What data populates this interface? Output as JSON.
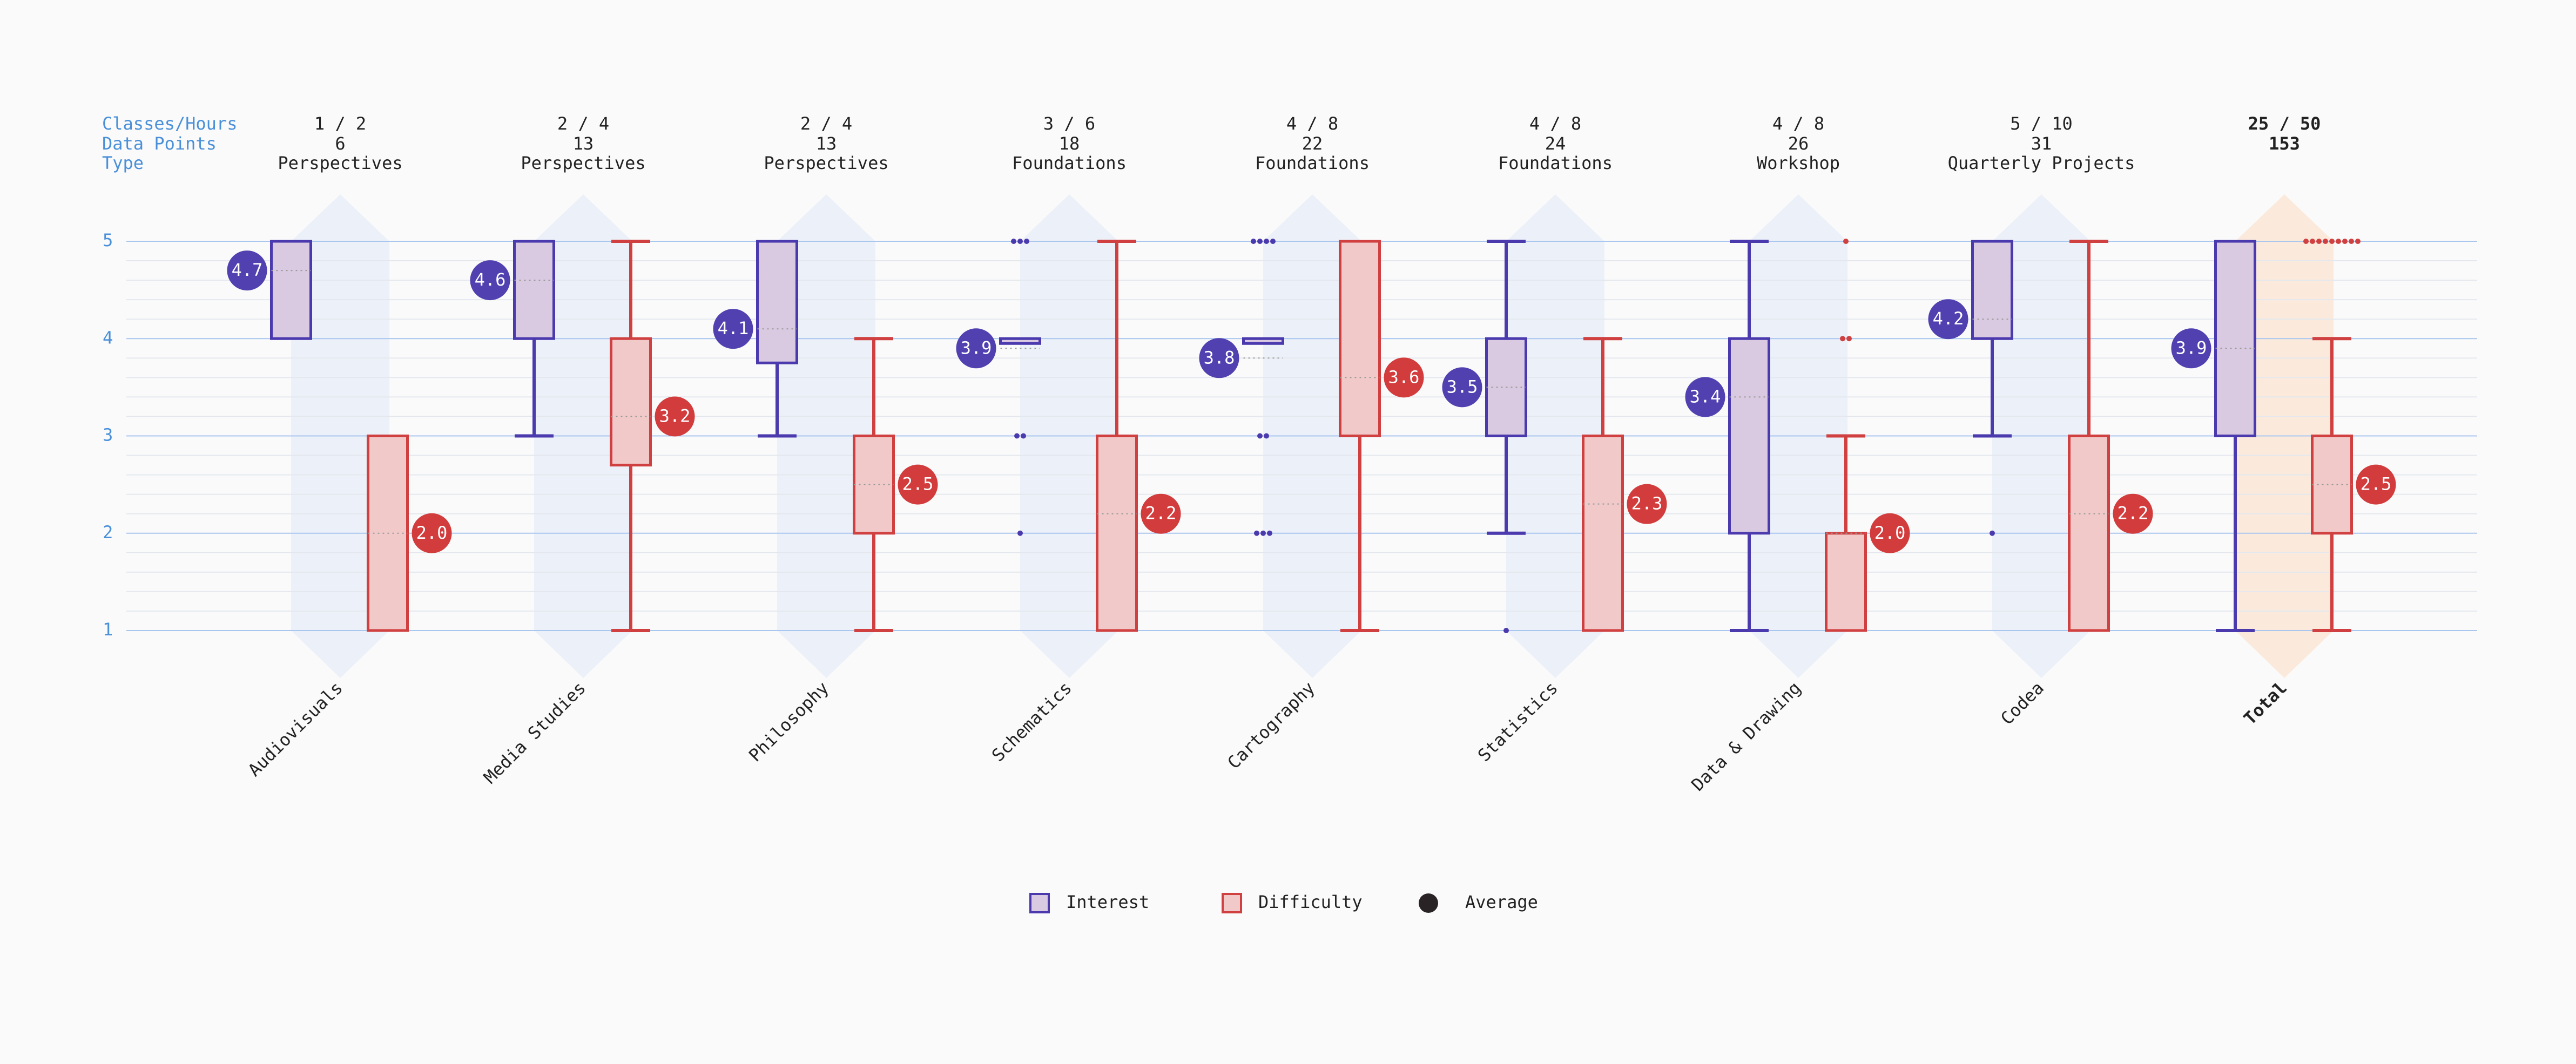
{
  "header": {
    "labels": [
      "Classes/Hours",
      "Data Points",
      "Type"
    ]
  },
  "chart_data": {
    "type": "box",
    "ylim": [
      1,
      5
    ],
    "yticks": [
      1,
      2,
      3,
      4,
      5
    ],
    "grid": true,
    "categories": [
      "Audiovisuals",
      "Media Studies",
      "Philosophy",
      "Schematics",
      "Cartography",
      "Statistics",
      "Data & Drawing",
      "Codea",
      "Total"
    ],
    "info": [
      {
        "classes_hours": "1 / 2",
        "data_points": 6,
        "kind": "Perspectives"
      },
      {
        "classes_hours": "2 / 4",
        "data_points": 13,
        "kind": "Perspectives"
      },
      {
        "classes_hours": "2 / 4",
        "data_points": 13,
        "kind": "Perspectives"
      },
      {
        "classes_hours": "3 / 6",
        "data_points": 18,
        "kind": "Foundations"
      },
      {
        "classes_hours": "4 / 8",
        "data_points": 22,
        "kind": "Foundations"
      },
      {
        "classes_hours": "4 / 8",
        "data_points": 24,
        "kind": "Foundations"
      },
      {
        "classes_hours": "4 / 8",
        "data_points": 26,
        "kind": "Workshop"
      },
      {
        "classes_hours": "5 / 10",
        "data_points": 31,
        "kind": "Quarterly Projects"
      },
      {
        "classes_hours": "25 / 50",
        "data_points": 153
      }
    ],
    "series": [
      {
        "name": "Interest",
        "color": "#4b3aae",
        "fill": "#d9c9e1",
        "mean_color": "#5040b0",
        "boxes": [
          {
            "min": 4,
            "q1": 4,
            "q3": 5,
            "max": 5,
            "mean": 4.7,
            "mean_label": "4.7",
            "outliers": []
          },
          {
            "min": 3,
            "q1": 4,
            "q3": 5,
            "max": 5,
            "mean": 4.6,
            "mean_label": "4.6",
            "outliers": []
          },
          {
            "min": 3,
            "q1": 3.75,
            "q3": 5,
            "max": 5,
            "mean": 4.1,
            "mean_label": "4.1",
            "outliers": []
          },
          {
            "min": 3.95,
            "q1": 3.95,
            "q3": 4,
            "max": 4,
            "mean": 3.9,
            "mean_label": "3.9",
            "outliers": [
              5,
              5,
              5,
              3,
              3,
              2
            ]
          },
          {
            "min": 3.95,
            "q1": 3.95,
            "q3": 4,
            "max": 4,
            "mean": 3.8,
            "mean_label": "3.8",
            "outliers": [
              5,
              5,
              5,
              5,
              3,
              3,
              2,
              2,
              2
            ]
          },
          {
            "min": 2,
            "q1": 3,
            "q3": 4,
            "max": 5,
            "mean": 3.5,
            "mean_label": "3.5",
            "outliers": [
              1
            ]
          },
          {
            "min": 1,
            "q1": 2,
            "q3": 4,
            "max": 5,
            "mean": 3.4,
            "mean_label": "3.4",
            "outliers": []
          },
          {
            "min": 3,
            "q1": 4,
            "q3": 5,
            "max": 5,
            "mean": 4.2,
            "mean_label": "4.2",
            "outliers": [
              2
            ]
          },
          {
            "min": 1,
            "q1": 3,
            "q3": 5,
            "max": 5,
            "mean": 3.9,
            "mean_label": "3.9",
            "outliers": []
          }
        ]
      },
      {
        "name": "Difficulty",
        "color": "#d04040",
        "fill": "#f1c9c9",
        "mean_color": "#d23c3c",
        "boxes": [
          {
            "min": 1,
            "q1": 1,
            "q3": 3,
            "max": 3,
            "mean": 2.0,
            "mean_label": "2.0",
            "outliers": []
          },
          {
            "min": 1,
            "q1": 2.7,
            "q3": 4,
            "max": 5,
            "mean": 3.2,
            "mean_label": "3.2",
            "outliers": []
          },
          {
            "min": 1,
            "q1": 2,
            "q3": 3,
            "max": 4,
            "mean": 2.5,
            "mean_label": "2.5",
            "outliers": []
          },
          {
            "min": 1,
            "q1": 1,
            "q3": 3,
            "max": 5,
            "mean": 2.2,
            "mean_label": "2.2",
            "outliers": []
          },
          {
            "min": 1,
            "q1": 3,
            "q3": 5,
            "max": 5,
            "mean": 3.6,
            "mean_label": "3.6",
            "outliers": []
          },
          {
            "min": 1,
            "q1": 1,
            "q3": 3,
            "max": 4,
            "mean": 2.3,
            "mean_label": "2.3",
            "outliers": []
          },
          {
            "min": 1,
            "q1": 1,
            "q3": 2,
            "max": 3,
            "mean": 2.0,
            "mean_label": "2.0",
            "outliers": [
              5,
              4,
              4
            ]
          },
          {
            "min": 1,
            "q1": 1,
            "q3": 3,
            "max": 5,
            "mean": 2.2,
            "mean_label": "2.2",
            "outliers": []
          },
          {
            "min": 1,
            "q1": 2,
            "q3": 3,
            "max": 4,
            "mean": 2.5,
            "mean_label": "2.5",
            "outliers": [
              5,
              5,
              5,
              5,
              5,
              5,
              5,
              5,
              5
            ]
          }
        ]
      }
    ],
    "average_label": "Average"
  }
}
